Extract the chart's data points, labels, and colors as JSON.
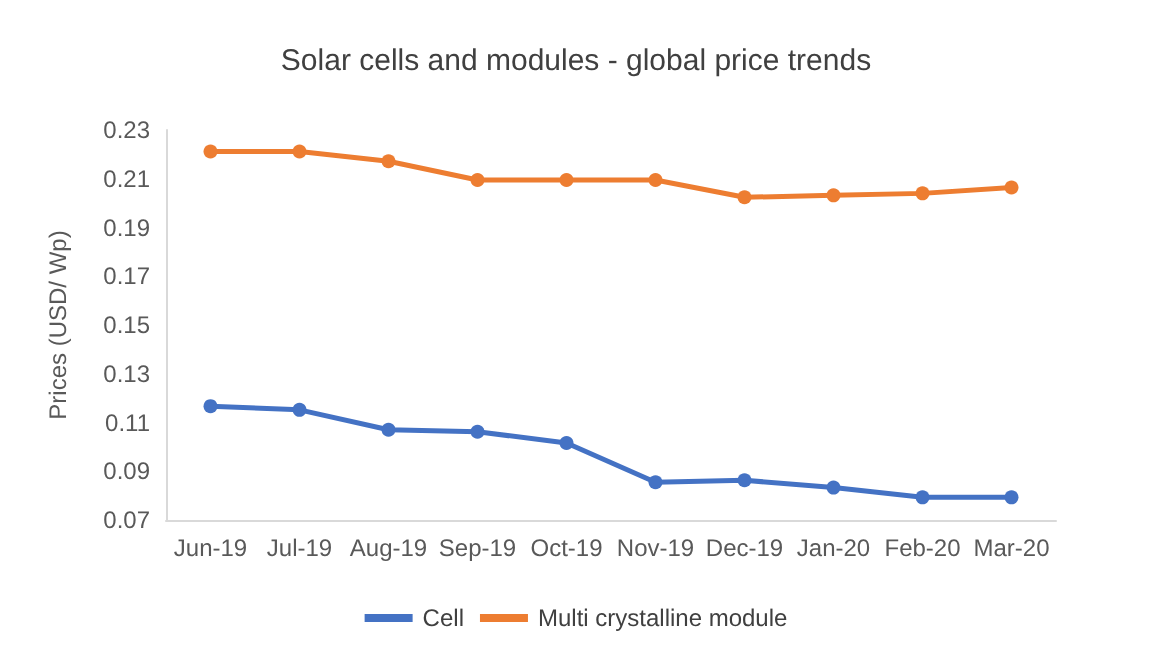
{
  "chart_data": {
    "type": "line",
    "title": "Solar cells and modules - global price trends",
    "ylabel": "Prices (USD/ Wp)",
    "categories": [
      "Jun-19",
      "Jul-19",
      "Aug-19",
      "Sep-19",
      "Oct-19",
      "Nov-19",
      "Dec-19",
      "Jan-20",
      "Feb-20",
      "Mar-20"
    ],
    "series": [
      {
        "name": "Cell",
        "color": "#4472c4",
        "values": [
          0.1167,
          0.1152,
          0.107,
          0.1062,
          0.1016,
          0.0855,
          0.0863,
          0.0833,
          0.0793,
          0.0793
        ]
      },
      {
        "name": "Multi crystalline module",
        "color": "#ed7d31",
        "values": [
          0.2212,
          0.2212,
          0.2172,
          0.2095,
          0.2095,
          0.2095,
          0.2024,
          0.2032,
          0.204,
          0.2064
        ]
      }
    ],
    "ylim": [
      0.07,
      0.23
    ],
    "yticks": [
      0.07,
      0.09,
      0.11,
      0.13,
      0.15,
      0.17,
      0.19,
      0.21,
      0.23
    ],
    "grid": false,
    "legend": "bottom",
    "marker": "circle",
    "line_style": "solid"
  }
}
